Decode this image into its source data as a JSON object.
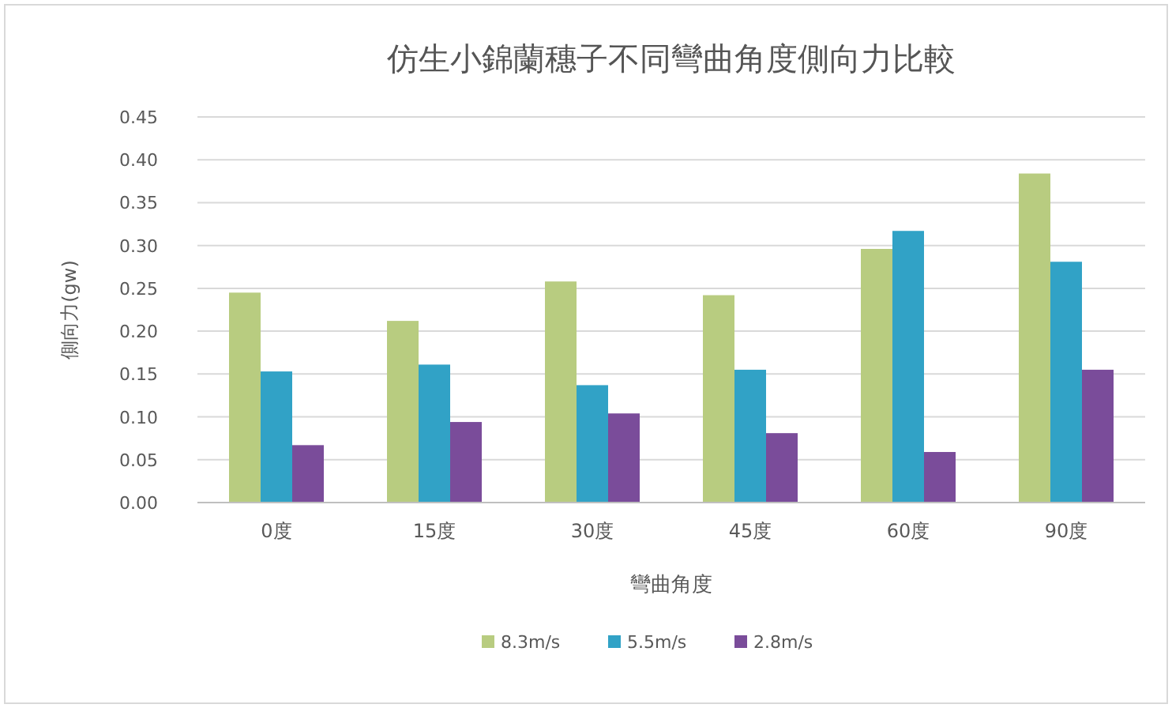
{
  "chart_data": {
    "type": "bar",
    "title": "仿生小錦蘭穗子不同彎曲角度側向力比較",
    "xlabel": "彎曲角度",
    "ylabel": "側向力(gw)",
    "categories": [
      "0度",
      "15度",
      "30度",
      "45度",
      "60度",
      "90度"
    ],
    "series": [
      {
        "name": "8.3m/s",
        "color": "#b8cc80",
        "values": [
          0.245,
          0.212,
          0.258,
          0.242,
          0.296,
          0.384
        ]
      },
      {
        "name": "5.5m/s",
        "color": "#31a2c6",
        "values": [
          0.153,
          0.161,
          0.137,
          0.155,
          0.317,
          0.281
        ]
      },
      {
        "name": "2.8m/s",
        "color": "#7a4c9a",
        "values": [
          0.067,
          0.094,
          0.104,
          0.081,
          0.059,
          0.155
        ]
      }
    ],
    "ylim": [
      0,
      0.45
    ],
    "yticks": [
      {
        "value": 0,
        "label": "0.00"
      },
      {
        "value": 0.05,
        "label": "0.05"
      },
      {
        "value": 0.1,
        "label": "0.10"
      },
      {
        "value": 0.15,
        "label": "0.15"
      },
      {
        "value": 0.2,
        "label": "0.20"
      },
      {
        "value": 0.25,
        "label": "0.25"
      },
      {
        "value": 0.3,
        "label": "0.30"
      },
      {
        "value": 0.35,
        "label": "0.35"
      },
      {
        "value": 0.4,
        "label": "0.40"
      },
      {
        "value": 0.45,
        "label": "0.45"
      }
    ],
    "grid": "y",
    "legend": "bottom"
  }
}
